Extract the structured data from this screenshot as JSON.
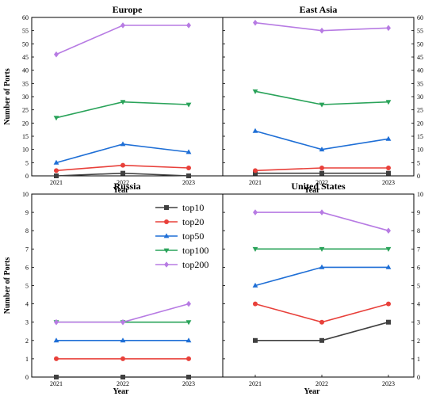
{
  "chart_data": [
    {
      "type": "line",
      "title": "Europe",
      "xlabel": "Year",
      "ylabel": "Number of Ports",
      "categories": [
        "2021",
        "2022",
        "2023"
      ],
      "ylim": [
        0,
        60
      ],
      "yticks": [
        0,
        5,
        10,
        15,
        20,
        25,
        30,
        35,
        40,
        45,
        50,
        55,
        60
      ],
      "series": [
        {
          "name": "top10",
          "values": [
            0,
            1,
            0
          ]
        },
        {
          "name": "top20",
          "values": [
            2,
            4,
            3
          ]
        },
        {
          "name": "top50",
          "values": [
            5,
            12,
            9
          ]
        },
        {
          "name": "top100",
          "values": [
            22,
            28,
            27
          ]
        },
        {
          "name": "top200",
          "values": [
            46,
            57,
            57
          ]
        }
      ]
    },
    {
      "type": "line",
      "title": "East Asia",
      "xlabel": "Year",
      "ylabel": "",
      "categories": [
        "2021",
        "2022",
        "2023"
      ],
      "ylim": [
        0,
        60
      ],
      "yticks": [
        0,
        5,
        10,
        15,
        20,
        25,
        30,
        35,
        40,
        45,
        50,
        55,
        60
      ],
      "series": [
        {
          "name": "top10",
          "values": [
            1,
            1,
            1
          ]
        },
        {
          "name": "top20",
          "values": [
            2,
            3,
            3
          ]
        },
        {
          "name": "top50",
          "values": [
            17,
            10,
            14
          ]
        },
        {
          "name": "top100",
          "values": [
            32,
            27,
            28
          ]
        },
        {
          "name": "top200",
          "values": [
            58,
            55,
            56
          ]
        }
      ]
    },
    {
      "type": "line",
      "title": "Russia",
      "xlabel": "Year",
      "ylabel": "Number of Ports",
      "categories": [
        "2021",
        "2022",
        "2023"
      ],
      "ylim": [
        0,
        10
      ],
      "yticks": [
        0,
        1,
        2,
        3,
        4,
        5,
        6,
        7,
        8,
        9,
        10
      ],
      "series": [
        {
          "name": "top10",
          "values": [
            0,
            0,
            0
          ]
        },
        {
          "name": "top20",
          "values": [
            1,
            1,
            1
          ]
        },
        {
          "name": "top50",
          "values": [
            2,
            2,
            2
          ]
        },
        {
          "name": "top100",
          "values": [
            3,
            3,
            3
          ]
        },
        {
          "name": "top200",
          "values": [
            3,
            3,
            4
          ]
        }
      ]
    },
    {
      "type": "line",
      "title": "United States",
      "xlabel": "Year",
      "ylabel": "",
      "categories": [
        "2021",
        "2022",
        "2023"
      ],
      "ylim": [
        0,
        10
      ],
      "yticks": [
        0,
        1,
        2,
        3,
        4,
        5,
        6,
        7,
        8,
        9,
        10
      ],
      "series": [
        {
          "name": "top10",
          "values": [
            2,
            2,
            3
          ]
        },
        {
          "name": "top20",
          "values": [
            4,
            3,
            4
          ]
        },
        {
          "name": "top50",
          "values": [
            5,
            6,
            6
          ]
        },
        {
          "name": "top100",
          "values": [
            7,
            7,
            7
          ]
        },
        {
          "name": "top200",
          "values": [
            9,
            9,
            8
          ]
        }
      ]
    }
  ],
  "legend": {
    "placement": "upper-right of Russia panel",
    "entries": [
      "top10",
      "top20",
      "top50",
      "top100",
      "top200"
    ]
  },
  "series_styles": {
    "top10": {
      "color": "#404040",
      "marker": "square"
    },
    "top20": {
      "color": "#e8403a",
      "marker": "circle"
    },
    "top50": {
      "color": "#1f6fd6",
      "marker": "triangle-up"
    },
    "top100": {
      "color": "#2aa35a",
      "marker": "triangle-down"
    },
    "top200": {
      "color": "#b77be3",
      "marker": "diamond"
    }
  }
}
